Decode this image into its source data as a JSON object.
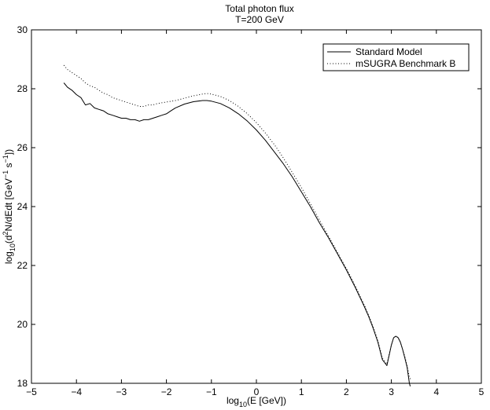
{
  "chart_data": {
    "type": "line",
    "title": "Total photon flux",
    "subtitle": "T=200 GeV",
    "xlabel": {
      "prefix": "log",
      "sub": "10",
      "rest": "(E [GeV])"
    },
    "ylabel": {
      "prefix": "log",
      "sub": "10",
      "p1": "(d",
      "sup1": "2",
      "p2": "N/dEdt [GeV",
      "sup2": "−1",
      "p3": " s",
      "sup3": "−1",
      "p4": "])"
    },
    "xlim": [
      -5,
      5
    ],
    "ylim": [
      18,
      30
    ],
    "xticks": [
      -5,
      -4,
      -3,
      -2,
      -1,
      0,
      1,
      2,
      3,
      4,
      5
    ],
    "yticks": [
      18,
      20,
      22,
      24,
      26,
      28,
      30
    ],
    "grid": false,
    "legend_position": "top-right",
    "series": [
      {
        "name": "Standard Model",
        "style": "solid",
        "color": "#000000",
        "x": [
          -4.28,
          -4.2,
          -4.1,
          -4.0,
          -3.9,
          -3.8,
          -3.7,
          -3.6,
          -3.5,
          -3.4,
          -3.3,
          -3.2,
          -3.1,
          -3.0,
          -2.9,
          -2.8,
          -2.7,
          -2.6,
          -2.5,
          -2.4,
          -2.3,
          -2.2,
          -2.1,
          -2.0,
          -1.9,
          -1.8,
          -1.6,
          -1.4,
          -1.2,
          -1.1,
          -1.0,
          -0.8,
          -0.6,
          -0.4,
          -0.2,
          0.0,
          0.2,
          0.4,
          0.6,
          0.8,
          1.0,
          1.2,
          1.4,
          1.6,
          1.8,
          2.0,
          2.2,
          2.4,
          2.5,
          2.6,
          2.7,
          2.75,
          2.8,
          2.9,
          3.0,
          3.05,
          3.1,
          3.15,
          3.2,
          3.25,
          3.3,
          3.35,
          3.4,
          3.42
        ],
        "y": [
          28.2,
          28.05,
          27.95,
          27.8,
          27.7,
          27.45,
          27.5,
          27.35,
          27.3,
          27.25,
          27.15,
          27.1,
          27.05,
          27.0,
          27.0,
          26.95,
          26.95,
          26.9,
          26.95,
          26.95,
          27.0,
          27.05,
          27.1,
          27.15,
          27.25,
          27.35,
          27.48,
          27.56,
          27.6,
          27.6,
          27.58,
          27.5,
          27.35,
          27.15,
          26.9,
          26.6,
          26.25,
          25.85,
          25.45,
          25.0,
          24.5,
          24.0,
          23.45,
          22.95,
          22.4,
          21.85,
          21.25,
          20.6,
          20.25,
          19.85,
          19.4,
          19.1,
          18.8,
          18.6,
          19.3,
          19.55,
          19.6,
          19.55,
          19.4,
          19.15,
          18.85,
          18.55,
          18.0,
          17.9
        ]
      },
      {
        "name": "mSUGRA Benchmark B",
        "style": "dotted",
        "color": "#000000",
        "x": [
          -4.28,
          -4.2,
          -4.1,
          -4.0,
          -3.9,
          -3.8,
          -3.7,
          -3.6,
          -3.5,
          -3.4,
          -3.3,
          -3.2,
          -3.1,
          -3.0,
          -2.9,
          -2.8,
          -2.7,
          -2.6,
          -2.5,
          -2.4,
          -2.3,
          -2.2,
          -2.0,
          -1.8,
          -1.6,
          -1.4,
          -1.2,
          -1.1,
          -1.0,
          -0.8,
          -0.6,
          -0.4,
          -0.2,
          0.0,
          0.2,
          0.4,
          0.6,
          0.8,
          1.0,
          1.2,
          1.4,
          1.6,
          1.8,
          2.0,
          2.2,
          2.4,
          2.5,
          2.6,
          2.7,
          2.75,
          2.8,
          2.9,
          3.0,
          3.05,
          3.1,
          3.15,
          3.2,
          3.25,
          3.3,
          3.35,
          3.4,
          3.45
        ],
        "y": [
          28.8,
          28.65,
          28.55,
          28.45,
          28.35,
          28.2,
          28.1,
          28.05,
          27.95,
          27.85,
          27.8,
          27.7,
          27.65,
          27.6,
          27.55,
          27.5,
          27.45,
          27.4,
          27.4,
          27.45,
          27.45,
          27.5,
          27.55,
          27.6,
          27.68,
          27.76,
          27.82,
          27.84,
          27.82,
          27.74,
          27.6,
          27.4,
          27.15,
          26.85,
          26.5,
          26.1,
          25.65,
          25.15,
          24.65,
          24.1,
          23.55,
          23.0,
          22.45,
          21.9,
          21.3,
          20.65,
          20.3,
          19.9,
          19.45,
          19.15,
          18.85,
          18.65,
          19.3,
          19.55,
          19.6,
          19.55,
          19.4,
          19.15,
          18.9,
          18.6,
          18.2,
          18.1
        ]
      }
    ]
  }
}
